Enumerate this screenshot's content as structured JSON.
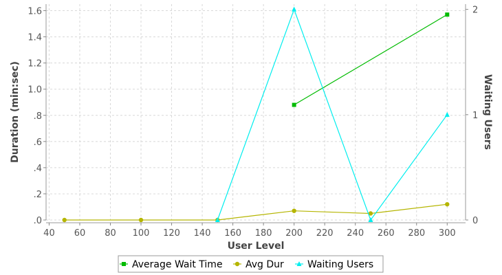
{
  "chart_data": {
    "type": "line",
    "xlabel": "User Level",
    "ylabel_left": "Duration (min:sec)",
    "ylabel_right": "Waiting Users",
    "x_ticks": [
      40,
      60,
      80,
      100,
      120,
      140,
      160,
      180,
      200,
      220,
      240,
      260,
      280,
      300
    ],
    "x_tick_labels": [
      "40",
      "60",
      "80",
      "100",
      "120",
      "140",
      "160",
      "180",
      "200",
      "220",
      "240",
      "260",
      "280",
      "300"
    ],
    "xlim": [
      38,
      312
    ],
    "y_left_ticks": [
      0,
      0.2,
      0.4,
      0.6,
      0.8,
      1.0,
      1.2,
      1.4,
      1.6
    ],
    "y_left_tick_labels": [
      ".0",
      ".2",
      ".4",
      ".6",
      ".8",
      "1.0",
      "1.2",
      "1.4",
      "1.6"
    ],
    "y_left_lim": [
      0,
      1.65
    ],
    "y_right_ticks": [
      0,
      1,
      2
    ],
    "y_right_tick_labels": [
      "0",
      "1",
      "2"
    ],
    "y_right_lim": [
      0,
      2.05
    ],
    "grid": true,
    "legend_position": "bottom",
    "series": [
      {
        "name": "Average Wait Time",
        "axis": "left",
        "color": "#00bb00",
        "marker": "square",
        "x": [
          200,
          300
        ],
        "y": [
          0.88,
          1.57
        ]
      },
      {
        "name": "Avg Dur",
        "axis": "left",
        "color": "#b5b500",
        "marker": "circle",
        "x": [
          50,
          100,
          150,
          200,
          250,
          300
        ],
        "y": [
          0.0,
          0.0,
          0.0,
          0.07,
          0.05,
          0.12
        ]
      },
      {
        "name": "Waiting Users",
        "axis": "right",
        "color": "#00eeee",
        "marker": "triangle",
        "x": [
          150,
          200,
          250,
          300
        ],
        "y": [
          0,
          2,
          0,
          1
        ]
      }
    ]
  }
}
